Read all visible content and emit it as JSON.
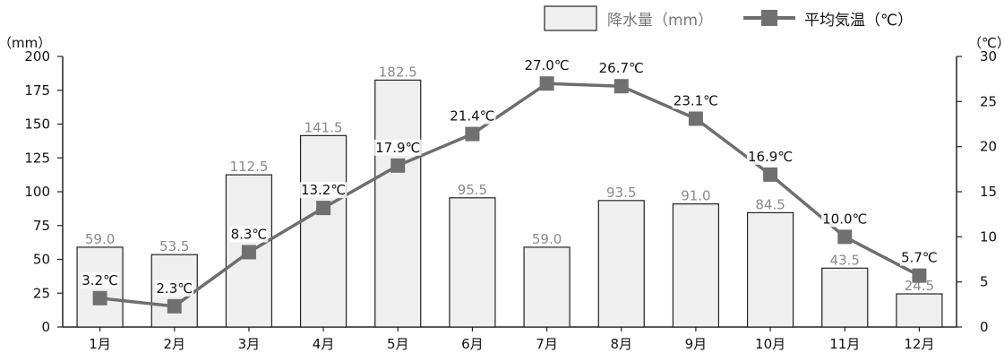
{
  "chart_data": {
    "type": "bar",
    "categories": [
      "1月",
      "2月",
      "3月",
      "4月",
      "5月",
      "6月",
      "7月",
      "8月",
      "9月",
      "10月",
      "11月",
      "12月"
    ],
    "series": [
      {
        "name": "降水量（mm）",
        "type": "bar",
        "axis": "left",
        "values": [
          59.0,
          53.5,
          112.5,
          141.5,
          182.5,
          95.5,
          59.0,
          93.5,
          91.0,
          84.5,
          43.5,
          24.5
        ],
        "labels": [
          "59.0",
          "53.5",
          "112.5",
          "141.5",
          "182.5",
          "95.5",
          "59.0",
          "93.5",
          "91.0",
          "84.5",
          "43.5",
          "24.5"
        ]
      },
      {
        "name": "平均気温（℃）",
        "type": "line",
        "axis": "right",
        "values": [
          3.2,
          2.3,
          8.3,
          13.2,
          17.9,
          21.4,
          27.0,
          26.7,
          23.1,
          16.9,
          10.0,
          5.7
        ],
        "labels": [
          "3.2℃",
          "2.3℃",
          "8.3℃",
          "13.2℃",
          "17.9℃",
          "21.4℃",
          "27.0℃",
          "26.7℃",
          "23.1℃",
          "16.9℃",
          "10.0℃",
          "5.7℃"
        ]
      }
    ],
    "left_axis": {
      "unit_label": "（mm）",
      "ylim": [
        0,
        200
      ],
      "ticks": [
        0,
        25,
        50,
        75,
        100,
        125,
        150,
        175,
        200
      ]
    },
    "right_axis": {
      "unit_label": "（℃）",
      "ylim": [
        0,
        30
      ],
      "ticks": [
        0,
        5,
        10,
        15,
        20,
        25,
        30
      ]
    },
    "legend": {
      "placement": "top-right"
    },
    "grid": false,
    "colors": {
      "bar_fill": "#efefef",
      "bar_stroke": "#222222",
      "bar_label": "#8a8a8a",
      "line": "#6e6e6e",
      "marker": "#707070",
      "axis": "#222222"
    }
  }
}
